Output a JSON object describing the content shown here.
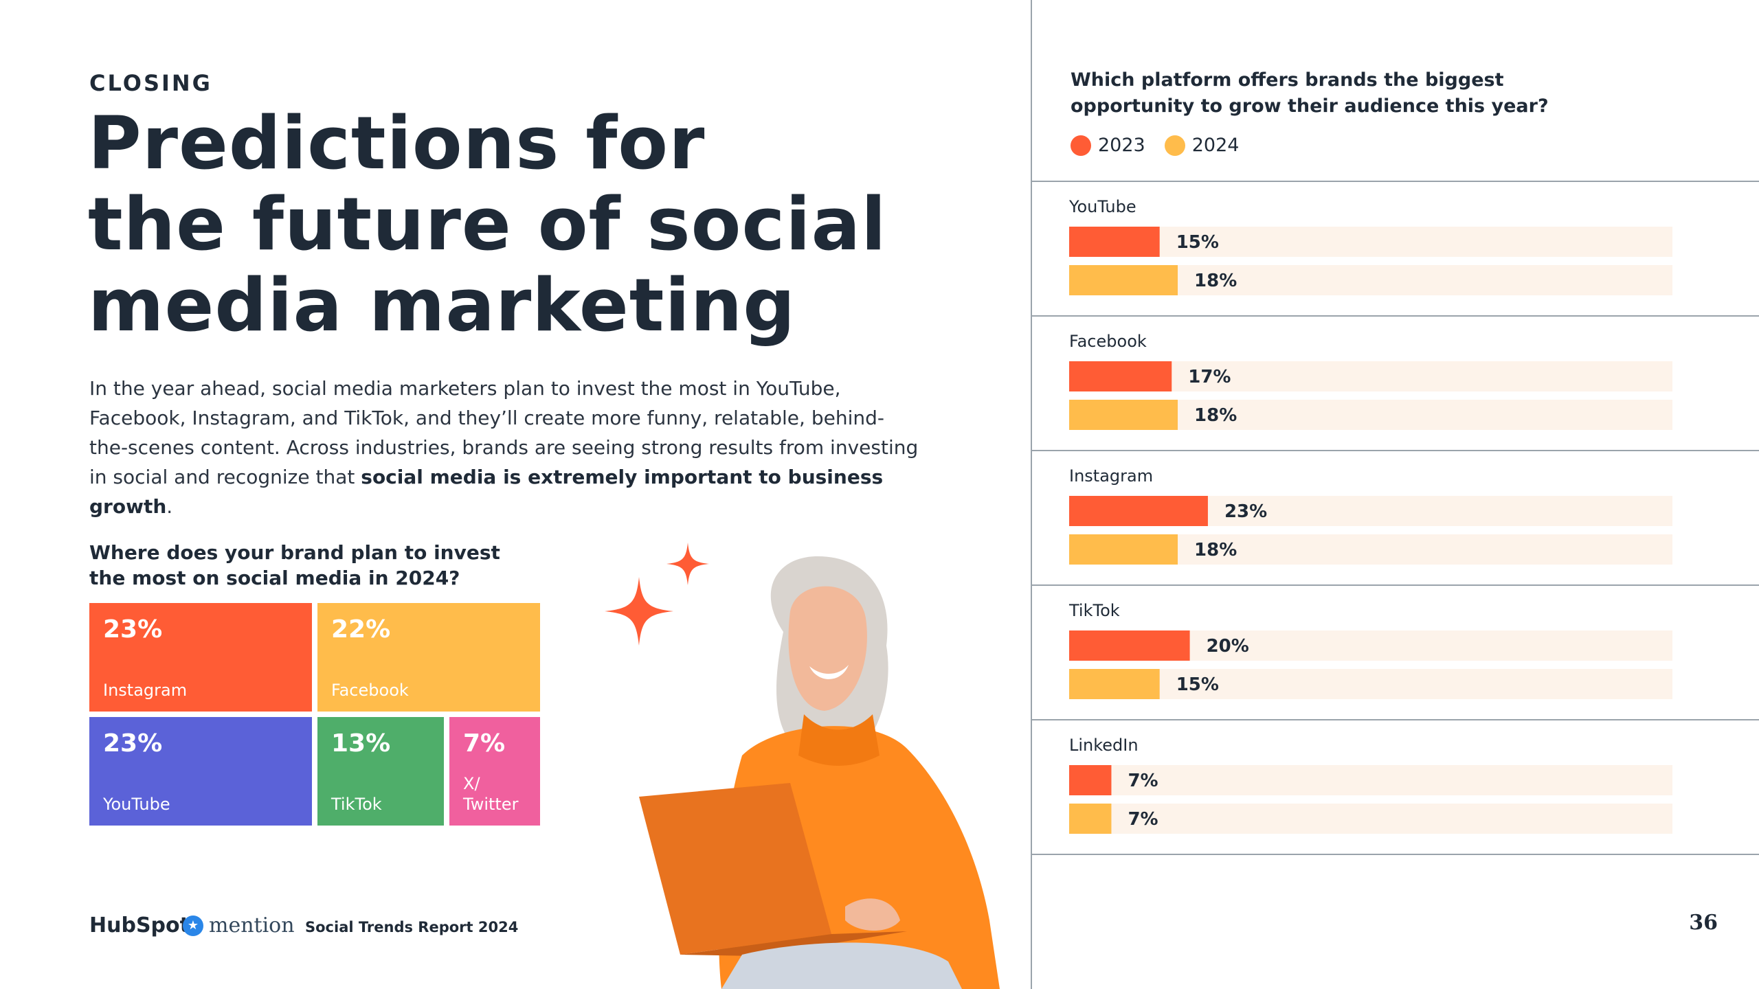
{
  "left": {
    "kicker": "CLOSING",
    "headline_lines": [
      "Predictions for",
      "the future of social",
      "media marketing"
    ],
    "intro_text": "In the year ahead, social media marketers plan to invest the most in YouTube, Facebook, Instagram, and TikTok, and they’ll create more funny, relatable, behind-the-scenes content. Across industries, brands are seeing strong results from investing in social and recognize that ",
    "intro_bold": "social media is extremely important to business growth",
    "intro_end": "."
  },
  "footer": {
    "hubspot": "HubSpot",
    "mention": "mention",
    "report": "Social Trends Report 2024",
    "page": "36"
  },
  "colors": {
    "c2023": "#ff5c35",
    "c2024": "#ffbc4b",
    "track": "#fdf3ea",
    "instagram": "#ff5c35",
    "facebook": "#ffbc4b",
    "youtube": "#5b62d8",
    "tiktok": "#4fae6a",
    "twitter": "#f0609e"
  },
  "chart_data": [
    {
      "type": "treemap",
      "title": "Where does your brand plan to invest the most on social media in 2024?",
      "items": [
        {
          "label": "Instagram",
          "value": 23,
          "display": "23%"
        },
        {
          "label": "Facebook",
          "value": 22,
          "display": "22%"
        },
        {
          "label": "YouTube",
          "value": 23,
          "display": "23%"
        },
        {
          "label": "TikTok",
          "value": 13,
          "display": "13%"
        },
        {
          "label": "X/ Twitter",
          "value": 7,
          "display": "7%"
        }
      ]
    },
    {
      "type": "bar",
      "orientation": "horizontal",
      "title": "Which platform offers brands the biggest opportunity to grow their audience this year?",
      "categories": [
        "YouTube",
        "Facebook",
        "Instagram",
        "TikTok",
        "LinkedIn"
      ],
      "series": [
        {
          "name": "2023",
          "values": [
            15,
            17,
            23,
            20,
            7
          ]
        },
        {
          "name": "2024",
          "values": [
            18,
            18,
            18,
            15,
            7
          ]
        }
      ],
      "xlim": [
        0,
        100
      ],
      "legend": "top-left"
    }
  ]
}
